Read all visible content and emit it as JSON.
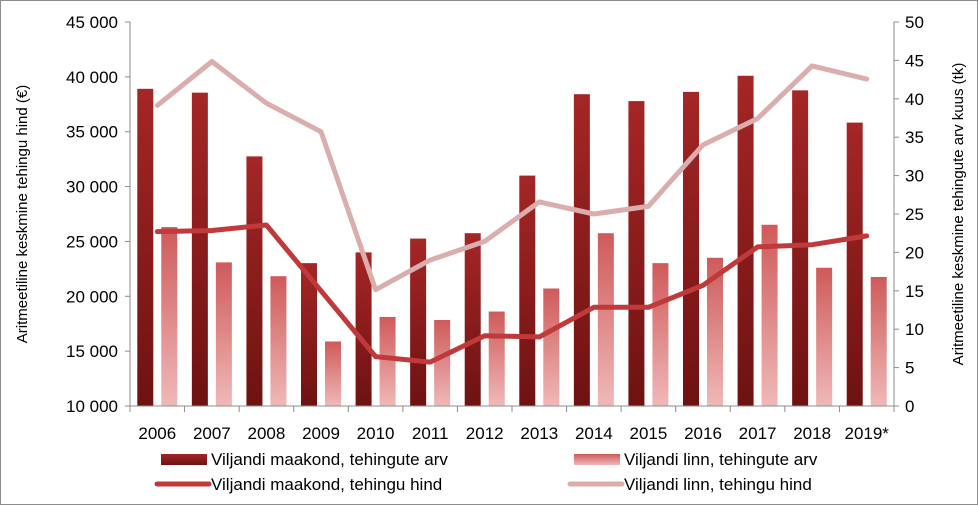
{
  "chart_data": {
    "type": "bar",
    "categories": [
      "2006",
      "2007",
      "2008",
      "2009",
      "2010",
      "2011",
      "2012",
      "2013",
      "2014",
      "2015",
      "2016",
      "2017",
      "2018",
      "2019*"
    ],
    "series": [
      {
        "name": "Viljandi maakond, tehingute arv",
        "kind": "bar",
        "axis": "right",
        "color": "#9b2020",
        "values": [
          41.3,
          40.8,
          32.5,
          18.6,
          20.0,
          21.8,
          22.5,
          30.0,
          40.6,
          39.7,
          40.9,
          43.0,
          41.1,
          36.9
        ]
      },
      {
        "name": "Viljandi linn, tehingute arv",
        "kind": "bar",
        "axis": "right",
        "color": "#d45c5c",
        "values": [
          23.3,
          18.7,
          16.9,
          8.4,
          11.6,
          11.2,
          12.3,
          15.3,
          22.5,
          18.6,
          19.3,
          23.6,
          18.0,
          16.8
        ]
      },
      {
        "name": "Viljandi maakond, tehingu hind",
        "kind": "line",
        "axis": "left",
        "color": "#c0393b",
        "values": [
          25900,
          26000,
          26500,
          20500,
          14500,
          14000,
          16400,
          16300,
          19000,
          19000,
          21000,
          24500,
          24700,
          25500
        ]
      },
      {
        "name": "Viljandi linn, tehingu hind",
        "kind": "line",
        "axis": "left",
        "color": "#dbaeae",
        "values": [
          37400,
          41400,
          37600,
          35000,
          20600,
          23300,
          25000,
          28600,
          27500,
          28200,
          33800,
          36200,
          41000,
          39800
        ]
      }
    ],
    "y_left": {
      "label": "Aritmeetiline keskmine tehingu hind (€)",
      "min": 10000,
      "max": 45000,
      "ticks": [
        "10 000",
        "15 000",
        "20 000",
        "25 000",
        "30 000",
        "35 000",
        "40 000",
        "45 000"
      ]
    },
    "y_right": {
      "label": "Aritmeetiline keskmine tehingute arv kuus (tk)",
      "min": 0,
      "max": 50,
      "ticks": [
        "0",
        "5",
        "10",
        "15",
        "20",
        "25",
        "30",
        "35",
        "40",
        "45",
        "50"
      ]
    },
    "grid": false,
    "legend_position": "bottom"
  }
}
